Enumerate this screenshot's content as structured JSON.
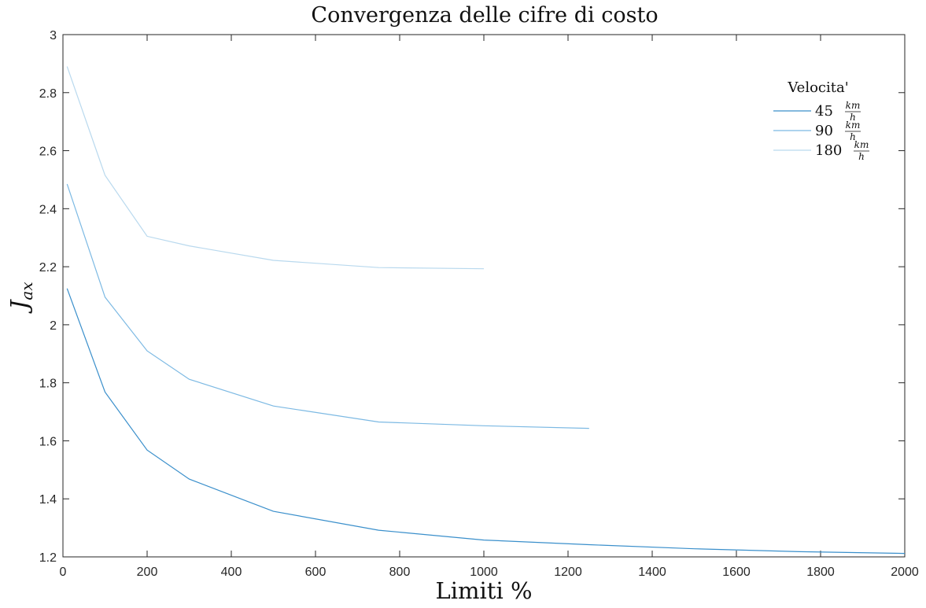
{
  "chart_data": {
    "type": "line",
    "title": "Convergenza delle cifre di costo",
    "xlabel": "Limiti %",
    "ylabel": {
      "main": "J",
      "sub": "ax"
    },
    "xlim": [
      0,
      2000
    ],
    "ylim": [
      1.2,
      3.0
    ],
    "xticks": [
      0,
      200,
      400,
      600,
      800,
      1000,
      1200,
      1400,
      1600,
      1800,
      2000
    ],
    "yticks": [
      1.2,
      1.4,
      1.6,
      1.8,
      2.0,
      2.2,
      2.4,
      2.6,
      2.8,
      3.0
    ],
    "xtick_labels": [
      "0",
      "200",
      "400",
      "600",
      "800",
      "1000",
      "1200",
      "1400",
      "1600",
      "1800",
      "2000"
    ],
    "ytick_labels": [
      "1.2",
      "1.4",
      "1.6",
      "1.8",
      "2",
      "2.2",
      "2.4",
      "2.6",
      "2.8",
      "3"
    ],
    "grid": false,
    "legend": {
      "title": "Velocita'",
      "placement": "top-right",
      "unit": {
        "numerator": "km",
        "denominator": "h"
      }
    },
    "series": [
      {
        "name": "45",
        "color": "#3a8fcb",
        "x": [
          10,
          100,
          200,
          300,
          500,
          750,
          1000,
          1250,
          1500,
          1750,
          2000
        ],
        "y": [
          2.125,
          1.768,
          1.568,
          1.468,
          1.357,
          1.292,
          1.258,
          1.242,
          1.228,
          1.218,
          1.212
        ]
      },
      {
        "name": "90",
        "color": "#7cb9e3",
        "x": [
          10,
          100,
          200,
          300,
          500,
          750,
          1000,
          1250
        ],
        "y": [
          2.485,
          2.095,
          1.91,
          1.812,
          1.72,
          1.665,
          1.652,
          1.643
        ]
      },
      {
        "name": "180",
        "color": "#b9d9ee",
        "x": [
          10,
          100,
          200,
          300,
          500,
          750,
          1000
        ],
        "y": [
          2.89,
          2.515,
          2.305,
          2.272,
          2.222,
          2.197,
          2.193
        ]
      }
    ]
  }
}
